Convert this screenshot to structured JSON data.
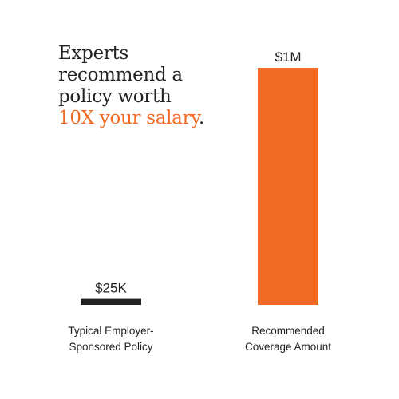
{
  "headline": {
    "line1": "Experts",
    "line2": "recommend a",
    "line3": "policy worth",
    "accent": "10X your salary",
    "period": "."
  },
  "colors": {
    "accent": "#f26a21",
    "bar_small": "#222222",
    "text": "#222222"
  },
  "chart_data": {
    "type": "bar",
    "categories": [
      "Typical Employer-\nSponsored Policy",
      "Recommended\nCoverage Amount"
    ],
    "category_lines": [
      [
        "Typical Employer-",
        "Sponsored Policy"
      ],
      [
        "Recommended",
        "Coverage Amount"
      ]
    ],
    "values": [
      25000,
      1000000
    ],
    "data_labels": [
      "$25K",
      "$1M"
    ],
    "ylim": [
      0,
      1000000
    ],
    "xlabel": "",
    "ylabel": "",
    "grid": false
  }
}
